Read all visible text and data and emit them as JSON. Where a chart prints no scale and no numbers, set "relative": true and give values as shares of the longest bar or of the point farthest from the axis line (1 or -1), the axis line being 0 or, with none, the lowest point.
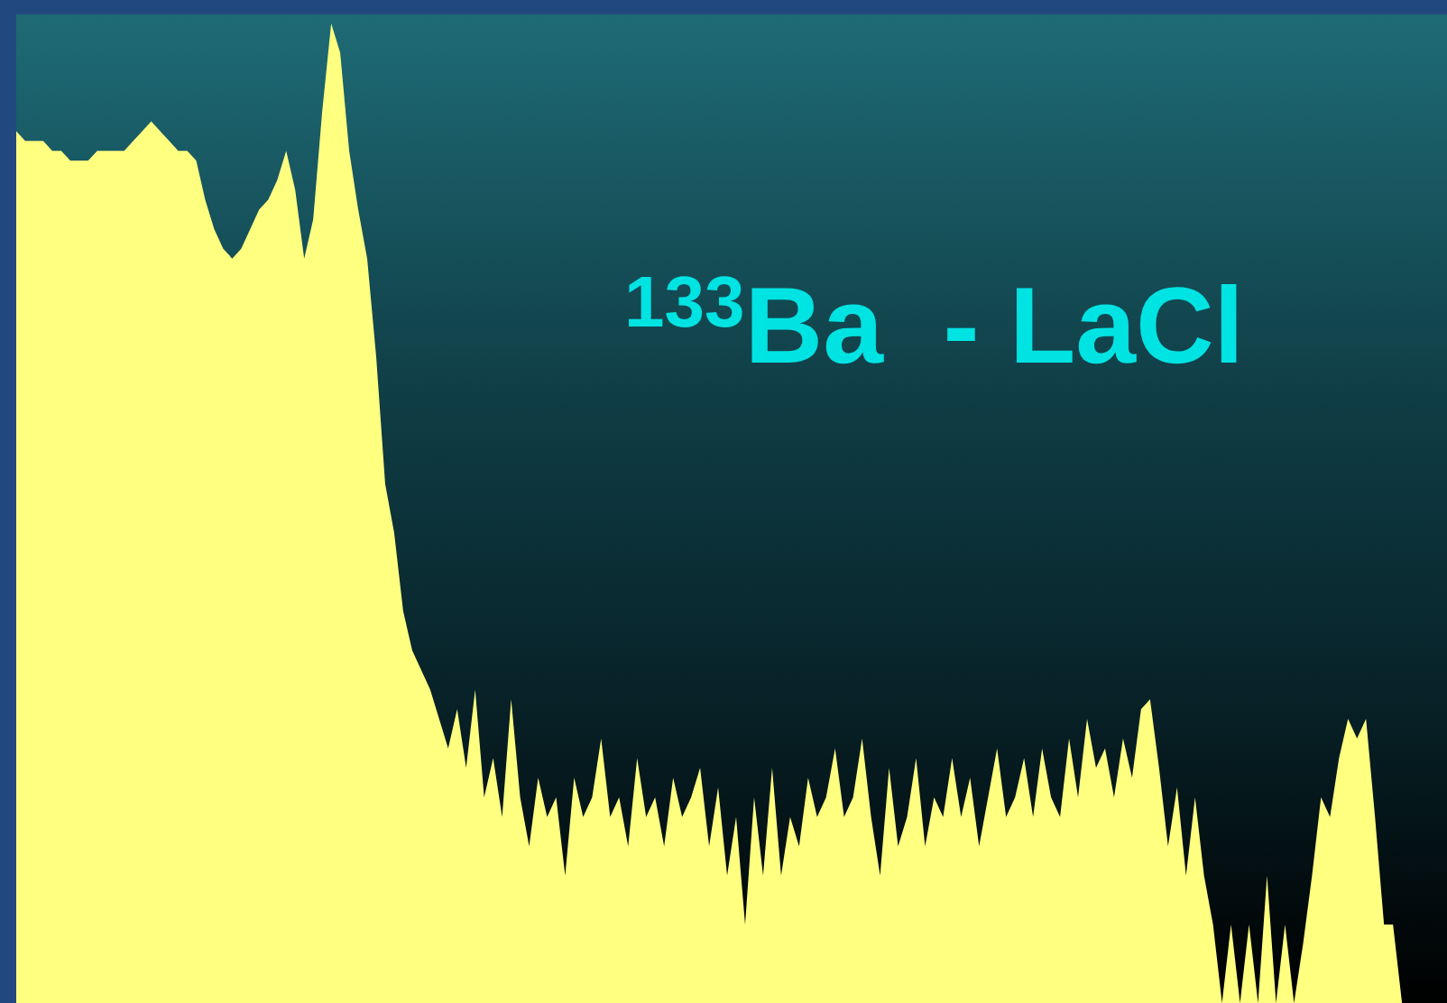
{
  "chart_data": {
    "type": "area",
    "title": "$^{133}$Ba  - LaCl",
    "relative": true,
    "tick_labels": false,
    "color": "#ffff80",
    "categories": [
      null,
      null,
      null,
      null,
      null,
      null,
      null,
      null,
      null,
      null,
      null,
      null,
      null,
      null,
      null,
      null,
      null,
      null,
      null,
      null,
      null,
      null,
      null,
      null,
      null,
      null,
      null,
      null,
      null,
      null,
      null,
      null,
      null,
      null,
      null,
      null,
      null,
      null,
      null,
      null,
      null,
      null,
      null,
      null,
      null,
      null,
      null,
      null,
      null,
      null,
      null,
      null,
      null,
      null,
      null,
      null,
      null,
      null,
      null,
      null,
      null,
      null,
      null,
      null,
      null,
      null,
      null,
      null,
      null,
      null,
      null,
      null,
      null,
      null,
      null,
      null,
      null,
      null,
      null,
      null,
      null,
      null,
      null,
      null,
      null,
      null,
      null,
      null,
      null,
      null,
      null,
      null,
      null,
      null,
      null,
      null,
      null,
      null,
      null,
      null,
      null,
      null,
      null,
      null,
      null,
      null,
      null,
      null,
      null,
      null,
      null,
      null,
      null,
      null,
      null,
      null,
      null,
      null,
      null,
      null,
      null,
      null,
      null,
      null,
      null,
      null,
      null,
      null,
      null,
      null,
      null,
      null,
      null,
      null,
      null,
      null,
      null,
      null,
      null,
      null,
      null,
      null,
      null,
      null,
      null,
      null,
      null,
      null,
      null,
      null,
      null,
      null,
      null,
      null,
      null,
      null,
      null,
      null,
      null,
      null
    ],
    "values": [
      0.89,
      0.88,
      0.88,
      0.88,
      0.87,
      0.87,
      0.86,
      0.86,
      0.86,
      0.87,
      0.87,
      0.87,
      0.87,
      0.88,
      0.89,
      0.9,
      0.89,
      0.88,
      0.87,
      0.87,
      0.86,
      0.82,
      0.79,
      0.77,
      0.76,
      0.77,
      0.79,
      0.81,
      0.82,
      0.84,
      0.87,
      0.83,
      0.76,
      0.8,
      0.91,
      1,
      0.97,
      0.87,
      0.81,
      0.76,
      0.66,
      0.53,
      0.48,
      0.4,
      0.36,
      0.34,
      0.32,
      0.29,
      0.26,
      0.3,
      0.24,
      0.32,
      0.21,
      0.25,
      0.19,
      0.31,
      0.21,
      0.16,
      0.23,
      0.19,
      0.21,
      0.13,
      0.23,
      0.19,
      0.21,
      0.27,
      0.19,
      0.21,
      0.16,
      0.25,
      0.19,
      0.21,
      0.16,
      0.23,
      0.19,
      0.21,
      0.24,
      0.16,
      0.22,
      0.13,
      0.19,
      0.08,
      0.21,
      0.13,
      0.24,
      0.13,
      0.19,
      0.16,
      0.23,
      0.19,
      0.21,
      0.26,
      0.19,
      0.21,
      0.27,
      0.19,
      0.13,
      0.24,
      0.16,
      0.19,
      0.25,
      0.16,
      0.21,
      0.19,
      0.25,
      0.19,
      0.23,
      0.16,
      0.21,
      0.26,
      0.19,
      0.21,
      0.25,
      0.19,
      0.26,
      0.21,
      0.19,
      0.27,
      0.21,
      0.29,
      0.24,
      0.26,
      0.21,
      0.27,
      0.23,
      0.3,
      0.31,
      0.24,
      0.16,
      0.22,
      0.13,
      0.21,
      0.13,
      0.08,
      0,
      0.08,
      0,
      0.08,
      0,
      0.13,
      0,
      0.08,
      0,
      0.06,
      0.13,
      0.21,
      0.19,
      0.25,
      0.29,
      0.27,
      0.29,
      0.19,
      0.08,
      0.08,
      0,
      0,
      0,
      0,
      0,
      0
    ]
  }
}
